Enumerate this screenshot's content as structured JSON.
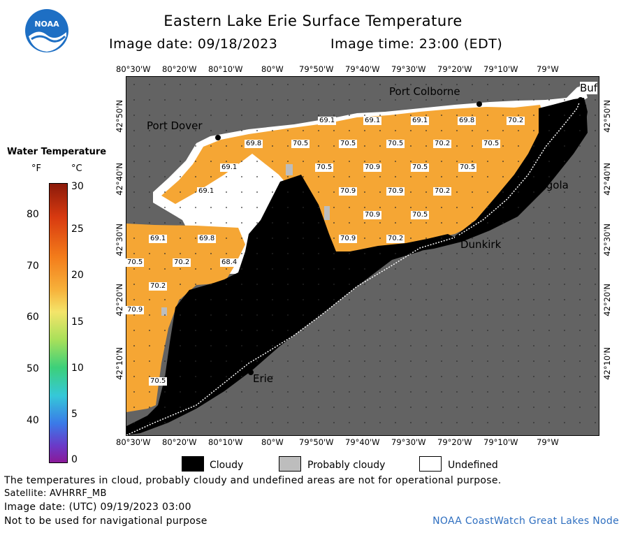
{
  "header": {
    "title": "Eastern Lake Erie Surface Temperature",
    "image_date": "Image date: 09/18/2023",
    "image_time": "Image time: 23:00 (EDT)"
  },
  "logo": {
    "text": "NOAA"
  },
  "legend": {
    "title": "Water Temperature",
    "unit_f": "°F",
    "unit_c": "°C",
    "f_ticks": [
      "80",
      "70",
      "60",
      "50",
      "40"
    ],
    "c_ticks": [
      "30",
      "25",
      "20",
      "15",
      "10",
      "5",
      "0"
    ]
  },
  "axes": {
    "lon_ticks": [
      "80°30'W",
      "80°20'W",
      "80°10'W",
      "80°W",
      "79°50'W",
      "79°40'W",
      "79°30'W",
      "79°20'W",
      "79°10'W",
      "79°W"
    ],
    "lat_ticks": [
      "42°50'N",
      "42°40'N",
      "42°30'N",
      "42°20'N",
      "42°10'N"
    ]
  },
  "cities": {
    "port_colborne": "Port Colborne",
    "port_dover": "Port Dover",
    "angola": "Angola",
    "dunkirk": "Dunkirk",
    "erie": "Erie",
    "buffalo": "Buf"
  },
  "temps": {
    "t01": "69.1",
    "t02": "69.1",
    "t03": "69.1",
    "t04": "69.8",
    "t05": "70.2",
    "t06": "69.8",
    "t07": "70.5",
    "t08": "70.5",
    "t09": "70.5",
    "t10": "70.2",
    "t11": "70.5",
    "t12": "69.1",
    "t13": "70.5",
    "t14": "70.9",
    "t15": "70.5",
    "t16": "70.5",
    "t17": "69.1",
    "t18": "70.9",
    "t19": "70.9",
    "t20": "70.2",
    "t21": "70.9",
    "t22": "70.5",
    "t23": "69.1",
    "t24": "69.8",
    "t25": "70.9",
    "t26": "70.2",
    "t27": "70.5",
    "t28": "70.2",
    "t29": "68.4",
    "t30": "70.2",
    "t31": "70.9",
    "t32": "70.5"
  },
  "key": {
    "cloudy": "Cloudy",
    "probably_cloudy": "Probably cloudy",
    "undefined": "Undefined",
    "colors": {
      "cloudy": "#000000",
      "probably_cloudy": "#bdbdbd",
      "undefined": "#ffffff",
      "land": "#636363",
      "water": "#f5a634"
    }
  },
  "footer": {
    "disclaimer": "The temperatures in cloud, probably cloudy and undefined areas are not for operational purpose.",
    "satellite": "Satellite: AVHRRF_MB",
    "utc_date": "Image date: (UTC) 09/19/2023  03:00",
    "nav": "Not to be used for navigational purpose",
    "credit": "NOAA CoastWatch Great Lakes Node"
  }
}
